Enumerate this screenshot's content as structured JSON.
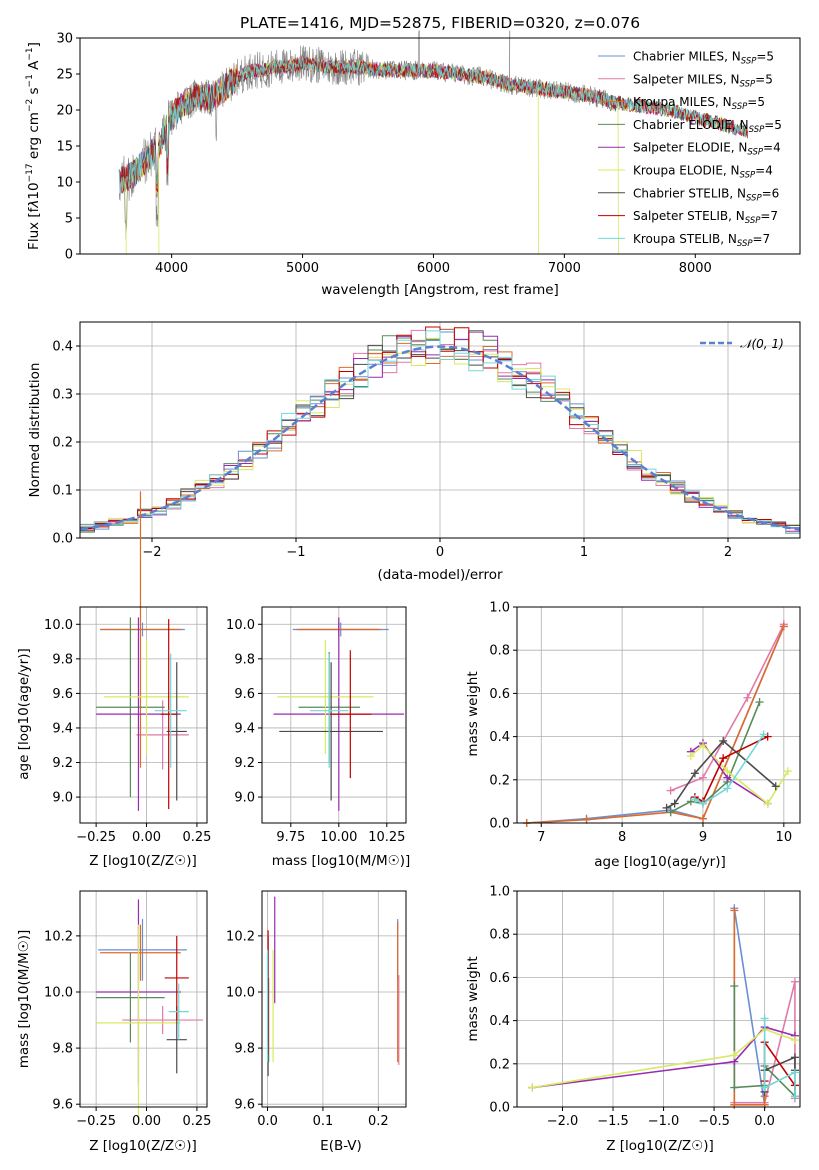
{
  "colors": {
    "chabrier_miles": "#6a8fd4",
    "salpeter_miles": "#e07aa8",
    "kroupa_miles": "#e06a2a",
    "chabrier_elodie": "#5a8a5a",
    "salpeter_elodie": "#9a2ab0",
    "kroupa_elodie": "#d8e860",
    "chabrier_stelib": "#4a4a4a",
    "salpeter_stelib": "#c00000",
    "kroupa_stelib": "#70d8d8",
    "data": "#808080",
    "gauss": "#5b80d0"
  },
  "chart_data": [
    {
      "id": "spectrum",
      "type": "line",
      "title": "PLATE=1416, MJD=52875, FIBERID=0320, z=0.076",
      "xlabel": "wavelength [Angstrom, rest frame]",
      "ylabel": "Flux [f_λ 10^-17 erg cm^-2 s^-1 A^-1]",
      "xlim": [
        3300,
        8800
      ],
      "ylim": [
        0,
        30
      ],
      "xticks": [
        "4000",
        "5000",
        "6000",
        "7000",
        "8000"
      ],
      "yticks": [
        "0",
        "5",
        "10",
        "15",
        "20",
        "25",
        "30"
      ],
      "legend": "upper right",
      "legend_entries": [
        "Chabrier MILES, N_SSP=5",
        "Salpeter MILES, N_SSP=5",
        "Kroupa MILES, N_SSP=5",
        "Chabrier ELODIE, N_SSP=5",
        "Salpeter ELODIE, N_SSP=4",
        "Kroupa ELODIE, N_SSP=4",
        "Chabrier STELIB, N_SSP=6",
        "Salpeter STELIB, N_SSP=7",
        "Kroupa STELIB, N_SSP=7"
      ],
      "continuum": {
        "x": [
          3600,
          3700,
          3800,
          3900,
          4000,
          4100,
          4200,
          4300,
          4400,
          4500,
          4600,
          4700,
          4800,
          4900,
          5000,
          5200,
          5400,
          5600,
          5800,
          6000,
          6200,
          6400,
          6600,
          6800,
          7000,
          7200,
          7400,
          7600,
          7800,
          8000,
          8200,
          8400
        ],
        "y": [
          10,
          11,
          13,
          15,
          19,
          21,
          22,
          21.5,
          23,
          24.5,
          25.5,
          25.5,
          26,
          26,
          26.5,
          26,
          26,
          25.5,
          25.5,
          25.5,
          25,
          24.5,
          23.5,
          23,
          22.5,
          22,
          21,
          20.5,
          20,
          19,
          18,
          17
        ]
      }
    },
    {
      "id": "residuals",
      "type": "bar",
      "xlabel": "(data-model)/error",
      "ylabel": "Normed distribution",
      "xlim": [
        -2.5,
        2.5
      ],
      "ylim": [
        0,
        0.45
      ],
      "xticks": [
        "−2",
        "−1",
        "0",
        "1",
        "2"
      ],
      "yticks": [
        "0.0",
        "0.1",
        "0.2",
        "0.3",
        "0.4"
      ],
      "legend_entries": [
        "𝒩(0, 1)"
      ],
      "legend": "upper right",
      "bin_width": 0.1
    },
    {
      "id": "age_vs_Z",
      "type": "scatter",
      "xlabel": "Z [log10(Z/Z☉)]",
      "ylabel": "age [log10(age/yr)]",
      "xlim": [
        -0.33,
        0.3
      ],
      "ylim": [
        8.85,
        10.1
      ],
      "xticks": [
        "−0.25",
        "0.00",
        "0.25"
      ],
      "yticks": [
        "9.0",
        "9.2",
        "9.4",
        "9.6",
        "9.8",
        "10.0"
      ],
      "points": [
        {
          "series": "chabrier_miles",
          "x": -0.02,
          "xerr": 0.21,
          "y": 9.97,
          "yerr": 0.04
        },
        {
          "series": "salpeter_miles",
          "x": 0.08,
          "xerr": 0.13,
          "y": 9.36,
          "yerr": 0.2
        },
        {
          "series": "kroupa_miles",
          "x": -0.03,
          "xerr": 0.2,
          "y": 9.97,
          "yerr": 0.8
        },
        {
          "series": "chabrier_elodie",
          "x": -0.08,
          "xerr": 0.17,
          "y": 9.52,
          "yerr": 0.52
        },
        {
          "series": "salpeter_elodie",
          "x": -0.04,
          "xerr": 0.21,
          "y": 9.48,
          "yerr": 0.56
        },
        {
          "series": "kroupa_elodie",
          "x": 0.0,
          "xerr": 0.21,
          "y": 9.58,
          "yerr": 0.33
        },
        {
          "series": "chabrier_stelib",
          "x": 0.15,
          "xerr": 0.05,
          "y": 9.38,
          "yerr": 0.4
        },
        {
          "series": "salpeter_stelib",
          "x": 0.11,
          "xerr": 0.04,
          "y": 9.48,
          "yerr": 0.55
        },
        {
          "series": "kroupa_stelib",
          "x": 0.12,
          "xerr": 0.08,
          "y": 9.5,
          "yerr": 0.33
        }
      ]
    },
    {
      "id": "age_vs_mass",
      "type": "scatter",
      "xlabel": "mass [log10(M/M☉)]",
      "ylabel": "",
      "xlim": [
        9.6,
        10.35
      ],
      "ylim": [
        8.85,
        10.1
      ],
      "xticks": [
        "9.75",
        "10.00",
        "10.25"
      ],
      "yticks": [
        "9.0",
        "9.2",
        "9.4",
        "9.6",
        "9.8",
        "10.0"
      ],
      "points": [
        {
          "series": "chabrier_miles",
          "x": 10.01,
          "xerr": 0.25,
          "y": 9.97,
          "yerr": 0.04
        },
        {
          "series": "salpeter_miles",
          "x": 10.0,
          "xerr": 0.21,
          "y": 9.97,
          "yerr": 0.04
        },
        {
          "series": "kroupa_miles",
          "x": 10.0,
          "xerr": 0.22,
          "y": 9.97,
          "yerr": 0.04
        },
        {
          "series": "chabrier_elodie",
          "x": 9.95,
          "xerr": 0.16,
          "y": 9.52,
          "yerr": 0.32
        },
        {
          "series": "salpeter_elodie",
          "x": 10.0,
          "xerr": 0.34,
          "y": 9.48,
          "yerr": 0.56
        },
        {
          "series": "kroupa_elodie",
          "x": 9.93,
          "xerr": 0.25,
          "y": 9.58,
          "yerr": 0.33
        },
        {
          "series": "chabrier_stelib",
          "x": 9.96,
          "xerr": 0.27,
          "y": 9.38,
          "yerr": 0.4
        },
        {
          "series": "salpeter_stelib",
          "x": 10.06,
          "xerr": 0.11,
          "y": 9.48,
          "yerr": 0.37
        },
        {
          "series": "kroupa_stelib",
          "x": 9.95,
          "xerr": 0.1,
          "y": 9.5,
          "yerr": 0.33
        }
      ]
    },
    {
      "id": "massweight_vs_age",
      "type": "line",
      "xlabel": "age [log10(age/yr)]",
      "ylabel": "mass weight",
      "xlim": [
        6.7,
        10.2
      ],
      "ylim": [
        0,
        1
      ],
      "xticks": [
        "7",
        "8",
        "9",
        "10"
      ],
      "yticks": [
        "0.0",
        "0.2",
        "0.4",
        "0.6",
        "0.8",
        "1.0"
      ],
      "series": [
        {
          "series": "chabrier_miles",
          "x": [
            6.82,
            7.56,
            8.6,
            9.0,
            10.0
          ],
          "y": [
            0.0,
            0.02,
            0.06,
            0.02,
            0.91
          ]
        },
        {
          "series": "salpeter_miles",
          "x": [
            8.6,
            9.0,
            9.55,
            10.0
          ],
          "y": [
            0.15,
            0.21,
            0.58,
            0.92
          ]
        },
        {
          "series": "kroupa_miles",
          "x": [
            6.82,
            7.56,
            8.6,
            9.0,
            10.0
          ],
          "y": [
            0.0,
            0.015,
            0.05,
            0.02,
            0.91
          ]
        },
        {
          "series": "chabrier_elodie",
          "x": [
            8.6,
            8.85,
            9.0,
            9.3,
            9.7
          ],
          "y": [
            0.05,
            0.1,
            0.09,
            0.19,
            0.56
          ]
        },
        {
          "series": "salpeter_elodie",
          "x": [
            8.85,
            9.0,
            9.3,
            9.8
          ],
          "y": [
            0.33,
            0.37,
            0.21,
            0.09
          ]
        },
        {
          "series": "kroupa_elodie",
          "x": [
            8.85,
            9.0,
            9.3,
            9.8,
            10.05
          ],
          "y": [
            0.31,
            0.36,
            0.24,
            0.09,
            0.24
          ]
        },
        {
          "series": "chabrier_stelib",
          "x": [
            8.55,
            8.65,
            8.9,
            9.25,
            9.9
          ],
          "y": [
            0.07,
            0.09,
            0.23,
            0.38,
            0.17
          ]
        },
        {
          "series": "salpeter_stelib",
          "x": [
            8.9,
            9.0,
            9.25,
            9.8
          ],
          "y": [
            0.12,
            0.1,
            0.3,
            0.4
          ]
        },
        {
          "series": "kroupa_stelib",
          "x": [
            8.9,
            9.0,
            9.3,
            9.75
          ],
          "y": [
            0.11,
            0.09,
            0.16,
            0.41
          ]
        }
      ]
    },
    {
      "id": "mass_vs_Z",
      "type": "scatter",
      "xlabel": "Z [log10(Z/Z☉)]",
      "ylabel": "mass [log10(M/M☉)]",
      "xlim": [
        -0.33,
        0.3
      ],
      "ylim": [
        9.59,
        10.36
      ],
      "xticks": [
        "−0.25",
        "0.00",
        "0.25"
      ],
      "yticks": [
        "9.6",
        "9.8",
        "10.0",
        "10.2"
      ],
      "points": [
        {
          "series": "chabrier_miles",
          "x": -0.02,
          "xerr": 0.22,
          "y": 10.15,
          "yerr": 0.11
        },
        {
          "series": "salpeter_miles",
          "x": 0.08,
          "xerr": 0.2,
          "y": 9.9,
          "yerr": 0.05
        },
        {
          "series": "kroupa_miles",
          "x": -0.03,
          "xerr": 0.2,
          "y": 10.14,
          "yerr": 0.1
        },
        {
          "series": "chabrier_elodie",
          "x": -0.08,
          "xerr": 0.17,
          "y": 9.98,
          "yerr": 0.16
        },
        {
          "series": "salpeter_elodie",
          "x": -0.04,
          "xerr": 0.21,
          "y": 10.0,
          "yerr": 0.33
        },
        {
          "series": "kroupa_elodie",
          "x": -0.04,
          "xerr": 0.21,
          "y": 9.89,
          "yerr": 0.35
        },
        {
          "series": "chabrier_stelib",
          "x": 0.15,
          "xerr": 0.05,
          "y": 9.83,
          "yerr": 0.12
        },
        {
          "series": "salpeter_stelib",
          "x": 0.15,
          "xerr": 0.06,
          "y": 10.05,
          "yerr": 0.15
        },
        {
          "series": "kroupa_stelib",
          "x": 0.16,
          "xerr": 0.05,
          "y": 9.93,
          "yerr": 0.1
        }
      ]
    },
    {
      "id": "mass_vs_ebv",
      "type": "scatter",
      "xlabel": "E(B-V)",
      "ylabel": "",
      "xlim": [
        -0.01,
        0.25
      ],
      "ylim": [
        9.59,
        10.36
      ],
      "xticks": [
        "0.0",
        "0.1",
        "0.2"
      ],
      "yticks": [
        "9.6",
        "9.8",
        "10.0",
        "10.2"
      ],
      "points": [
        {
          "series": "chabrier_miles",
          "x": 0.235,
          "xerr": 0,
          "y": 10.15,
          "yerr": 0.11
        },
        {
          "series": "salpeter_miles",
          "x": 0.237,
          "xerr": 0,
          "y": 9.9,
          "yerr": 0.16
        },
        {
          "series": "kroupa_miles",
          "x": 0.235,
          "xerr": 0,
          "y": 10.0,
          "yerr": 0.25
        },
        {
          "series": "chabrier_elodie",
          "x": 0.002,
          "xerr": 0,
          "y": 9.9,
          "yerr": 0.15
        },
        {
          "series": "salpeter_elodie",
          "x": 0.013,
          "xerr": 0,
          "y": 10.15,
          "yerr": 0.19
        },
        {
          "series": "kroupa_elodie",
          "x": 0.01,
          "xerr": 0,
          "y": 9.95,
          "yerr": 0.2
        },
        {
          "series": "chabrier_stelib",
          "x": 0.001,
          "xerr": 0,
          "y": 9.95,
          "yerr": 0.25
        },
        {
          "series": "salpeter_stelib",
          "x": 0.001,
          "xerr": 0,
          "y": 10.0,
          "yerr": 0.22
        },
        {
          "series": "kroupa_stelib",
          "x": 0.0,
          "xerr": 0,
          "y": 9.95,
          "yerr": 0.2
        }
      ]
    },
    {
      "id": "massweight_vs_Z",
      "type": "line",
      "xlabel": "Z [log10(Z/Z☉)]",
      "ylabel": "mass weight",
      "xlim": [
        -2.45,
        0.35
      ],
      "ylim": [
        0,
        1
      ],
      "xticks": [
        "−2.0",
        "−1.5",
        "−1.0",
        "−0.5",
        "0.0"
      ],
      "yticks": [
        "0.0",
        "0.2",
        "0.4",
        "0.6",
        "0.8",
        "1.0"
      ],
      "series": [
        {
          "series": "chabrier_miles",
          "x": [
            -0.3,
            -0.3,
            0.0,
            0.0
          ],
          "y": [
            0.01,
            0.92,
            0.01,
            0.07
          ]
        },
        {
          "series": "salpeter_miles",
          "x": [
            -0.3,
            0.0,
            0.3,
            0.3
          ],
          "y": [
            0.02,
            0.02,
            0.58,
            0.04
          ]
        },
        {
          "series": "kroupa_miles",
          "x": [
            -0.3,
            -0.3,
            0.0,
            0.0
          ],
          "y": [
            0.91,
            0.01,
            0.01,
            0.05
          ]
        },
        {
          "series": "chabrier_elodie",
          "x": [
            -0.3,
            -0.3,
            0.0,
            0.0,
            0.3,
            0.3
          ],
          "y": [
            0.56,
            0.09,
            0.1,
            0.19,
            0.05,
            0.1
          ]
        },
        {
          "series": "salpeter_elodie",
          "x": [
            -2.3,
            -0.3,
            0.0,
            0.3
          ],
          "y": [
            0.09,
            0.21,
            0.37,
            0.33
          ]
        },
        {
          "series": "kroupa_elodie",
          "x": [
            -2.3,
            -0.3,
            0.0,
            0.3
          ],
          "y": [
            0.09,
            0.24,
            0.36,
            0.31
          ]
        },
        {
          "series": "chabrier_stelib",
          "x": [
            0.0,
            0.0,
            0.3,
            0.3
          ],
          "y": [
            0.07,
            0.17,
            0.23,
            0.17
          ]
        },
        {
          "series": "salpeter_stelib",
          "x": [
            0.0,
            0.0,
            0.3
          ],
          "y": [
            0.12,
            0.3,
            0.1
          ]
        },
        {
          "series": "kroupa_stelib",
          "x": [
            0.0,
            0.0,
            0.3,
            0.3
          ],
          "y": [
            0.41,
            0.09,
            0.16,
            0.05
          ]
        }
      ]
    }
  ]
}
